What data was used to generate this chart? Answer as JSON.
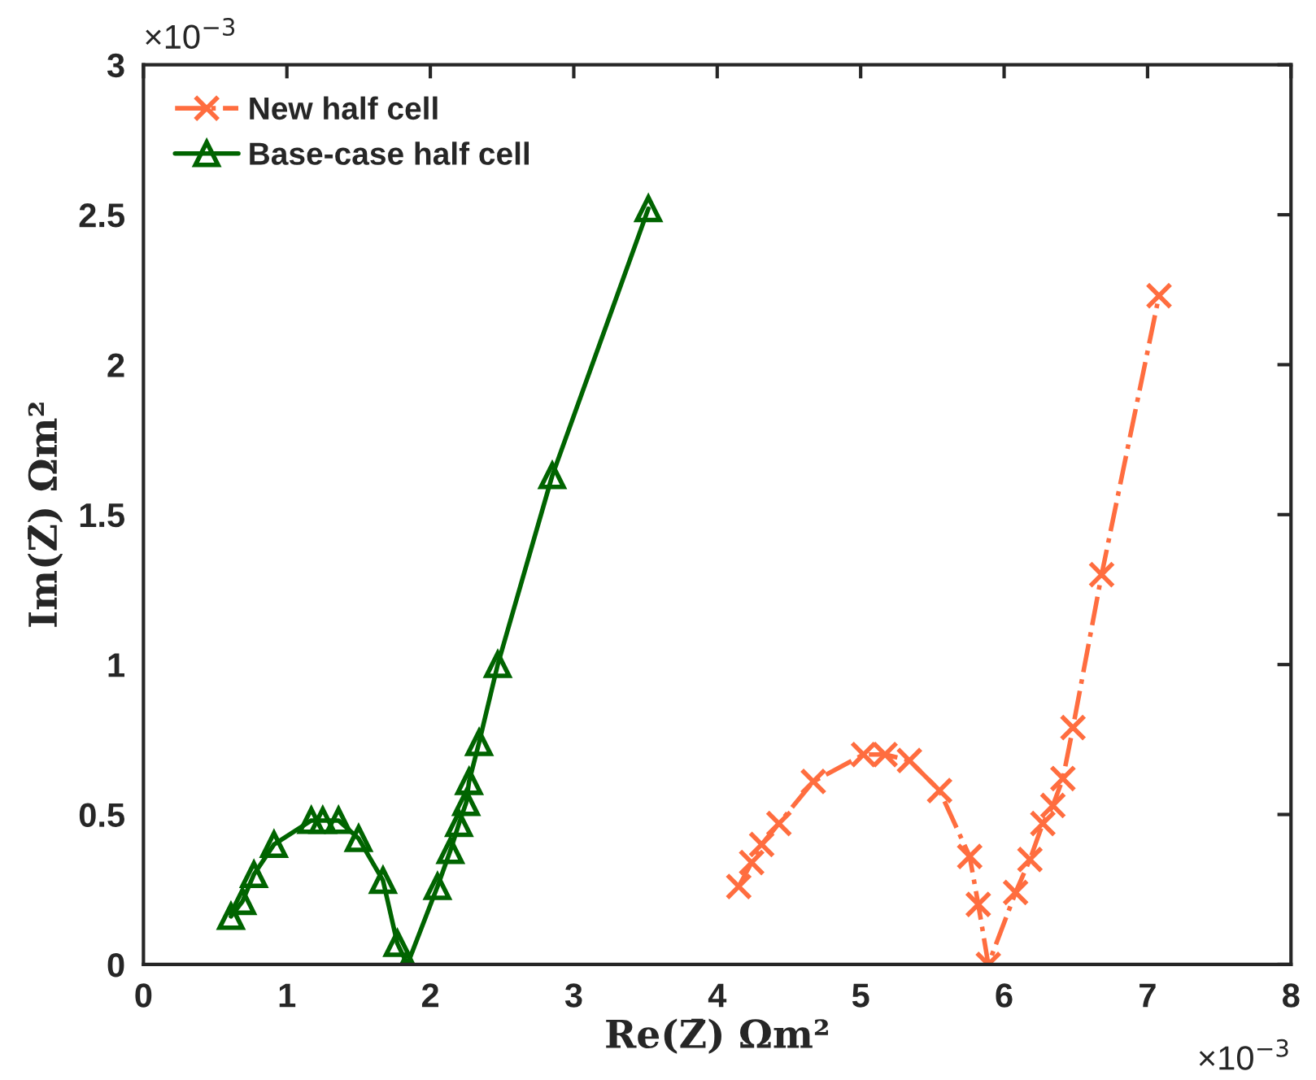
{
  "chart_data": {
    "type": "line",
    "xlabel": "Re(Z̄) Ωm²",
    "ylabel": "Im(Z̄) Ωm²",
    "xlim": [
      0,
      8
    ],
    "xticks": [
      0,
      1,
      2,
      3,
      4,
      5,
      6,
      7,
      8
    ],
    "ylim": [
      0,
      3
    ],
    "yticks": [
      0,
      0.5,
      1,
      1.5,
      2,
      2.5,
      3
    ],
    "annotations": [
      "×10$^{−3}$",
      "×10$^{−3}$"
    ],
    "grid": false,
    "legend": "top left",
    "series": [
      {
        "name": "New half cell",
        "color": "#ff6d3f",
        "marker": "cross",
        "line_style": "dashdot",
        "x": [
          4.15,
          4.24,
          4.31,
          4.43,
          4.67,
          5.02,
          5.17,
          5.34,
          5.55,
          5.76,
          5.82,
          5.89,
          6.08,
          6.18,
          6.27,
          6.34,
          6.41,
          6.48,
          6.68,
          7.08
        ],
        "values": [
          0.26,
          0.34,
          0.4,
          0.47,
          0.61,
          0.7,
          0.7,
          0.68,
          0.58,
          0.36,
          0.2,
          0.0,
          0.24,
          0.35,
          0.47,
          0.53,
          0.62,
          0.79,
          1.3,
          2.23
        ]
      },
      {
        "name": "Base-case half cell",
        "color": "#006400",
        "marker": "triangle",
        "line_style": "solid",
        "x": [
          0.61,
          0.69,
          0.77,
          0.91,
          1.17,
          1.25,
          1.36,
          1.5,
          1.67,
          1.77,
          1.84,
          2.05,
          2.14,
          2.2,
          2.25,
          2.27,
          2.34,
          2.47,
          2.85,
          3.52
        ],
        "values": [
          0.16,
          0.21,
          0.3,
          0.4,
          0.48,
          0.48,
          0.48,
          0.42,
          0.28,
          0.07,
          0.0,
          0.26,
          0.38,
          0.47,
          0.54,
          0.61,
          0.74,
          1.0,
          1.63,
          2.52
        ]
      }
    ]
  }
}
